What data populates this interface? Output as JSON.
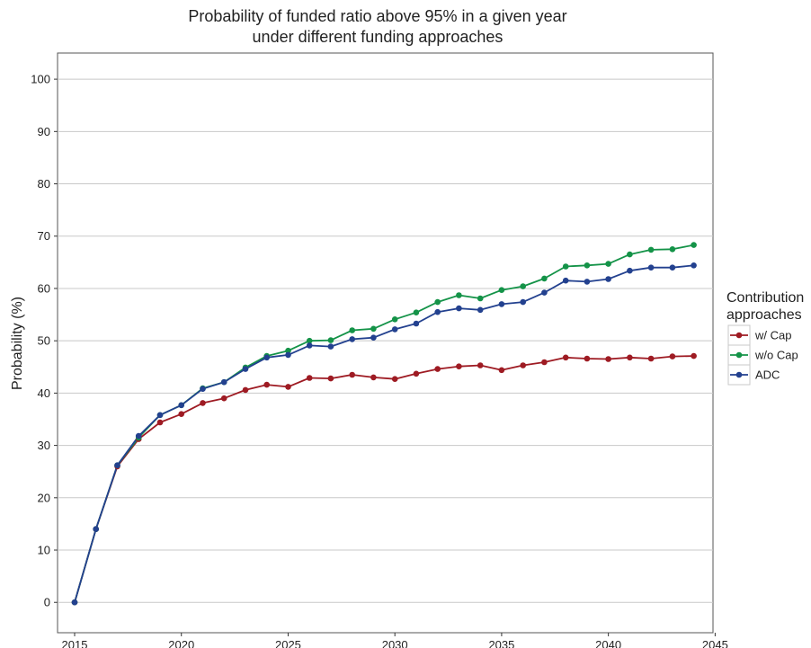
{
  "chart_data": {
    "type": "line",
    "title": "Probability of funded ratio above 95% in a given year under different funding approaches",
    "title_lines": [
      "Probability of funded ratio above 95% in a given year",
      "under different funding approaches"
    ],
    "ylabel": "Probability (%)",
    "xlabel": "",
    "x": [
      2015,
      2016,
      2017,
      2018,
      2019,
      2020,
      2021,
      2022,
      2023,
      2024,
      2025,
      2026,
      2027,
      2028,
      2029,
      2030,
      2031,
      2032,
      2033,
      2034,
      2035,
      2036,
      2037,
      2038,
      2039,
      2040,
      2041,
      2042,
      2043,
      2044
    ],
    "xticks": [
      "2015",
      "2020",
      "2025",
      "2030",
      "2035",
      "2040",
      "2045"
    ],
    "yticks": [
      "0",
      "10",
      "20",
      "30",
      "40",
      "50",
      "60",
      "70",
      "80",
      "90",
      "100"
    ],
    "xlim": [
      2014.2,
      2044.9
    ],
    "ylim": [
      -5.8,
      105
    ],
    "grid": true,
    "legend": {
      "title": "Contribution approaches",
      "title_lines": [
        "Contribution",
        "approaches"
      ],
      "placement": "right"
    },
    "series": [
      {
        "name": "w/ Cap",
        "color": "#9e1b23",
        "values": [
          0,
          14,
          26,
          31.2,
          34.4,
          36,
          38.1,
          39,
          40.6,
          41.6,
          41.2,
          42.9,
          42.8,
          43.5,
          43,
          42.7,
          43.7,
          44.6,
          45.1,
          45.3,
          44.4,
          45.3,
          45.9,
          46.8,
          46.6,
          46.5,
          46.8,
          46.6,
          47,
          47.1
        ]
      },
      {
        "name": "w/o Cap",
        "color": "#149348",
        "values": [
          0,
          14,
          26.2,
          31.5,
          35.8,
          37.7,
          40.9,
          42.1,
          44.9,
          47.1,
          48.1,
          50,
          50.1,
          52,
          52.3,
          54.1,
          55.4,
          57.4,
          58.7,
          58.1,
          59.7,
          60.4,
          61.9,
          64.2,
          64.4,
          64.7,
          66.5,
          67.4,
          67.5,
          68.3
        ]
      },
      {
        "name": "ADC",
        "color": "#23418f",
        "values": [
          0,
          14,
          26.2,
          31.8,
          35.8,
          37.7,
          40.8,
          42.1,
          44.6,
          46.8,
          47.3,
          49.1,
          48.9,
          50.3,
          50.6,
          52.2,
          53.3,
          55.5,
          56.2,
          55.9,
          57,
          57.4,
          59.2,
          61.5,
          61.3,
          61.8,
          63.4,
          64,
          64,
          64.4
        ]
      }
    ]
  }
}
